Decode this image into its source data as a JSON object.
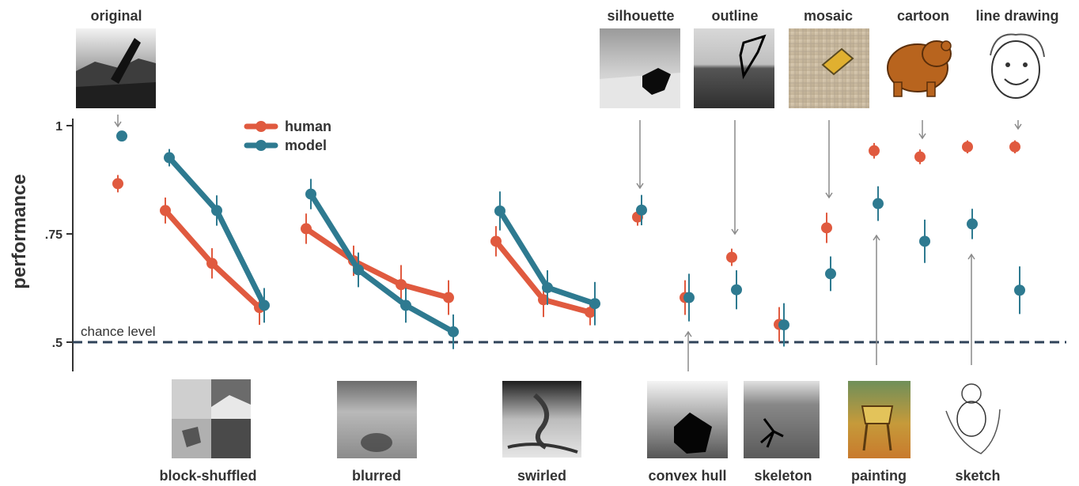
{
  "chart_data": {
    "type": "scatter",
    "ylabel": "performance",
    "ylim": [
      0.44,
      1.02
    ],
    "yticks": [
      {
        "value": 0.5,
        "label": ".5"
      },
      {
        "value": 0.75,
        "label": ".75"
      },
      {
        "value": 1.0,
        "label": "1"
      }
    ],
    "chance_level": {
      "value": 0.5,
      "label": "chance level"
    },
    "legend": {
      "placement": "top-left",
      "entries": [
        {
          "key": "human",
          "label": "human"
        },
        {
          "key": "model",
          "label": "model"
        }
      ]
    },
    "colors": {
      "human": "#e05a3f",
      "model": "#2e7a90",
      "chance": "#2f4359",
      "errorbar_human": "#e05a3f",
      "errorbar_model": "#2e7a90"
    },
    "series": [
      {
        "name": "human",
        "color": "#e05a3f",
        "groups": [
          {
            "points": [
              {
                "x": 149,
                "y": 0.866,
                "err": 0.02
              }
            ]
          },
          {
            "points": [
              {
                "x": 209,
                "y": 0.804,
                "err": 0.03
              },
              {
                "x": 268,
                "y": 0.682,
                "err": 0.035
              },
              {
                "x": 328,
                "y": 0.58,
                "err": 0.04
              }
            ]
          },
          {
            "points": [
              {
                "x": 387,
                "y": 0.762,
                "err": 0.035
              },
              {
                "x": 447,
                "y": 0.688,
                "err": 0.035
              },
              {
                "x": 507,
                "y": 0.633,
                "err": 0.045
              },
              {
                "x": 567,
                "y": 0.603,
                "err": 0.04
              }
            ]
          },
          {
            "points": [
              {
                "x": 627,
                "y": 0.733,
                "err": 0.035
              },
              {
                "x": 687,
                "y": 0.598,
                "err": 0.04
              },
              {
                "x": 746,
                "y": 0.569,
                "err": 0.03
              }
            ]
          },
          {
            "points": [
              {
                "x": 806,
                "y": 0.789,
                "err": 0.02
              }
            ]
          },
          {
            "points": [
              {
                "x": 866,
                "y": 0.603,
                "err": 0.04
              }
            ]
          },
          {
            "points": [
              {
                "x": 925,
                "y": 0.696,
                "err": 0.02
              }
            ]
          },
          {
            "points": [
              {
                "x": 985,
                "y": 0.541,
                "err": 0.04
              }
            ]
          },
          {
            "points": [
              {
                "x": 1045,
                "y": 0.764,
                "err": 0.035
              }
            ]
          },
          {
            "points": [
              {
                "x": 1105,
                "y": 0.942,
                "err": 0.018
              }
            ]
          },
          {
            "points": [
              {
                "x": 1163,
                "y": 0.928,
                "err": 0.017
              }
            ]
          },
          {
            "points": [
              {
                "x": 1223,
                "y": 0.951,
                "err": 0.015
              }
            ]
          },
          {
            "points": [
              {
                "x": 1283,
                "y": 0.951,
                "err": 0.015
              }
            ]
          }
        ]
      },
      {
        "name": "model",
        "color": "#2e7a90",
        "groups": [
          {
            "points": [
              {
                "x": 154,
                "y": 0.976,
                "err": 0.0
              }
            ]
          },
          {
            "points": [
              {
                "x": 214,
                "y": 0.926,
                "err": 0.02
              },
              {
                "x": 274,
                "y": 0.804,
                "err": 0.035
              },
              {
                "x": 334,
                "y": 0.585,
                "err": 0.04
              }
            ]
          },
          {
            "points": [
              {
                "x": 393,
                "y": 0.842,
                "err": 0.035
              },
              {
                "x": 453,
                "y": 0.667,
                "err": 0.04
              },
              {
                "x": 513,
                "y": 0.585,
                "err": 0.04
              },
              {
                "x": 573,
                "y": 0.524,
                "err": 0.04
              }
            ]
          },
          {
            "points": [
              {
                "x": 632,
                "y": 0.803,
                "err": 0.045
              },
              {
                "x": 692,
                "y": 0.626,
                "err": 0.04
              },
              {
                "x": 752,
                "y": 0.589,
                "err": 0.05
              }
            ]
          },
          {
            "points": [
              {
                "x": 811,
                "y": 0.805,
                "err": 0.035
              }
            ]
          },
          {
            "points": [
              {
                "x": 871,
                "y": 0.603,
                "err": 0.055
              }
            ]
          },
          {
            "points": [
              {
                "x": 931,
                "y": 0.621,
                "err": 0.045
              }
            ]
          },
          {
            "points": [
              {
                "x": 991,
                "y": 0.54,
                "err": 0.05
              }
            ]
          },
          {
            "points": [
              {
                "x": 1050,
                "y": 0.658,
                "err": 0.04
              }
            ]
          },
          {
            "points": [
              {
                "x": 1110,
                "y": 0.82,
                "err": 0.04
              }
            ]
          },
          {
            "points": [
              {
                "x": 1169,
                "y": 0.733,
                "err": 0.05
              }
            ]
          },
          {
            "points": [
              {
                "x": 1229,
                "y": 0.773,
                "err": 0.035
              }
            ]
          },
          {
            "points": [
              {
                "x": 1289,
                "y": 0.62,
                "err": 0.055
              }
            ]
          }
        ]
      }
    ]
  },
  "categories_top": [
    {
      "label": "original",
      "image": "black-and-white car photo",
      "arrow_y": 0.866
    },
    {
      "label": "silhouette",
      "image": "silhouette on grey photo",
      "arrow_y": 0.805
    },
    {
      "label": "outline",
      "image": "outline on sea photo",
      "arrow_y": 0.696
    },
    {
      "label": "mosaic",
      "image": "mosaic car photo",
      "arrow_y": 0.658
    },
    {
      "label": "cartoon",
      "image": "cartoon bear",
      "arrow_y": 0.928
    },
    {
      "label": "line drawing",
      "image": "line drawing face",
      "arrow_y": 0.951
    }
  ],
  "categories_bottom": [
    {
      "label": "block-shuffled",
      "image": "block-shuffled photo"
    },
    {
      "label": "blurred",
      "image": "blurred horse photo"
    },
    {
      "label": "swirled",
      "image": "swirled photo"
    },
    {
      "label": "convex hull",
      "image": "convex hull photo"
    },
    {
      "label": "skeleton",
      "image": "skeleton photo"
    },
    {
      "label": "painting",
      "image": "painting of chair"
    },
    {
      "label": "sketch",
      "image": "sketch of woman"
    }
  ]
}
